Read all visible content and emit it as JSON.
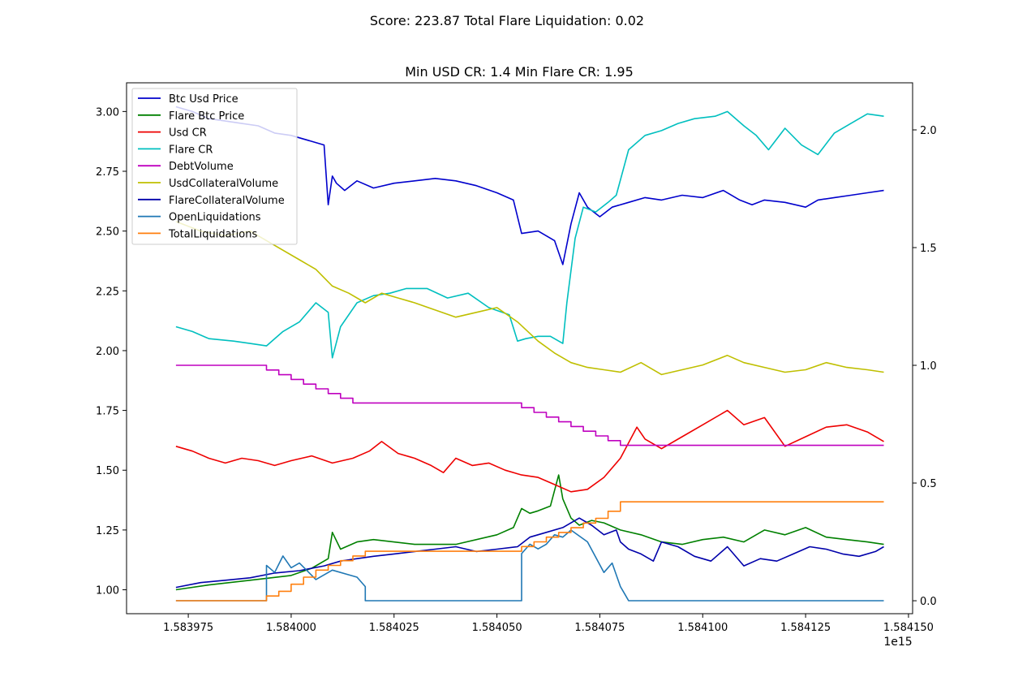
{
  "figure": {
    "suptitle": "Score: 223.87 Total Flare Liquidation: 0.02"
  },
  "chart_data": {
    "type": "line",
    "title": "Min USD CR: 1.4 Min Flare CR: 1.95",
    "xlabel": "",
    "ylabel_left": "",
    "ylabel_right": "",
    "x_offset_label": "1e15",
    "xlim": [
      1.58396,
      1.584151
    ],
    "ylim_left": [
      0.9,
      3.12
    ],
    "ylim_right": [
      -0.055,
      2.2
    ],
    "x_ticks": [
      1.583975,
      1.584,
      1.584025,
      1.58405,
      1.584075,
      1.5841,
      1.584125,
      1.58415
    ],
    "x_tick_labels": [
      "1.583975",
      "1.584000",
      "1.584025",
      "1.584050",
      "1.584075",
      "1.584100",
      "1.584125",
      "1.584150"
    ],
    "y_ticks_left": [
      1.0,
      1.25,
      1.5,
      1.75,
      2.0,
      2.25,
      2.5,
      2.75,
      3.0
    ],
    "y_tick_labels_left": [
      "1.00",
      "1.25",
      "1.50",
      "1.75",
      "2.00",
      "2.25",
      "2.50",
      "2.75",
      "3.00"
    ],
    "y_ticks_right": [
      0.0,
      0.5,
      1.0,
      1.5,
      2.0
    ],
    "y_tick_labels_right": [
      "0.0",
      "0.5",
      "1.0",
      "1.5",
      "2.0"
    ],
    "grid": false,
    "legend_position": "top-left",
    "series": [
      {
        "name": "Btc Usd Price",
        "color": "#0000cc",
        "axis": "left",
        "x": [
          1.583972,
          1.583976,
          1.58398,
          1.583984,
          1.583988,
          1.583992,
          1.583996,
          1.584,
          1.584004,
          1.584008,
          1.584009,
          1.58401,
          1.584011,
          1.584013,
          1.584016,
          1.58402,
          1.584025,
          1.58403,
          1.584035,
          1.58404,
          1.584045,
          1.58405,
          1.584054,
          1.584056,
          1.58406,
          1.584064,
          1.584066,
          1.584068,
          1.58407,
          1.584072,
          1.584075,
          1.584078,
          1.584082,
          1.584086,
          1.58409,
          1.584095,
          1.5841,
          1.584105,
          1.584109,
          1.584112,
          1.584115,
          1.58412,
          1.584125,
          1.584128,
          1.584132,
          1.584136,
          1.58414,
          1.584144
        ],
        "y": [
          3.02,
          3.0,
          2.97,
          2.96,
          2.95,
          2.94,
          2.91,
          2.9,
          2.88,
          2.86,
          2.61,
          2.73,
          2.7,
          2.67,
          2.71,
          2.68,
          2.7,
          2.71,
          2.72,
          2.71,
          2.69,
          2.66,
          2.63,
          2.49,
          2.5,
          2.46,
          2.36,
          2.53,
          2.66,
          2.6,
          2.56,
          2.6,
          2.62,
          2.64,
          2.63,
          2.65,
          2.64,
          2.67,
          2.63,
          2.61,
          2.63,
          2.62,
          2.6,
          2.63,
          2.64,
          2.65,
          2.66,
          2.67
        ]
      },
      {
        "name": "Flare Btc Price",
        "color": "#008000",
        "axis": "left",
        "x": [
          1.583972,
          1.58398,
          1.58399,
          1.584,
          1.584005,
          1.584009,
          1.58401,
          1.584012,
          1.584016,
          1.58402,
          1.58403,
          1.58404,
          1.58405,
          1.584054,
          1.584056,
          1.584058,
          1.58406,
          1.584063,
          1.584065,
          1.584066,
          1.584068,
          1.58407,
          1.584073,
          1.584076,
          1.58408,
          1.584085,
          1.58409,
          1.584095,
          1.5841,
          1.584105,
          1.58411,
          1.584115,
          1.58412,
          1.584125,
          1.58413,
          1.584135,
          1.58414,
          1.584144
        ],
        "y": [
          1.0,
          1.02,
          1.04,
          1.06,
          1.09,
          1.13,
          1.24,
          1.17,
          1.2,
          1.21,
          1.19,
          1.19,
          1.23,
          1.26,
          1.34,
          1.32,
          1.33,
          1.35,
          1.48,
          1.38,
          1.3,
          1.27,
          1.29,
          1.28,
          1.25,
          1.23,
          1.2,
          1.19,
          1.21,
          1.22,
          1.2,
          1.25,
          1.23,
          1.26,
          1.22,
          1.21,
          1.2,
          1.19
        ]
      },
      {
        "name": "Usd CR",
        "color": "#ee0000",
        "axis": "left",
        "x": [
          1.583972,
          1.583976,
          1.58398,
          1.583984,
          1.583988,
          1.583992,
          1.583996,
          1.584,
          1.584005,
          1.58401,
          1.584015,
          1.584019,
          1.584022,
          1.584026,
          1.58403,
          1.584034,
          1.584037,
          1.58404,
          1.584044,
          1.584048,
          1.584052,
          1.584056,
          1.58406,
          1.584064,
          1.584068,
          1.584072,
          1.584076,
          1.58408,
          1.584084,
          1.584086,
          1.58409,
          1.584095,
          1.5841,
          1.584106,
          1.58411,
          1.584115,
          1.58412,
          1.584125,
          1.58413,
          1.584135,
          1.58414,
          1.584144
        ],
        "y": [
          1.6,
          1.58,
          1.55,
          1.53,
          1.55,
          1.54,
          1.52,
          1.54,
          1.56,
          1.53,
          1.55,
          1.58,
          1.62,
          1.57,
          1.55,
          1.52,
          1.49,
          1.55,
          1.52,
          1.53,
          1.5,
          1.48,
          1.47,
          1.44,
          1.41,
          1.42,
          1.47,
          1.55,
          1.68,
          1.63,
          1.59,
          1.64,
          1.69,
          1.75,
          1.69,
          1.72,
          1.6,
          1.64,
          1.68,
          1.69,
          1.66,
          1.62
        ]
      },
      {
        "name": "Flare CR",
        "color": "#00bfbf",
        "axis": "left",
        "x": [
          1.583972,
          1.583976,
          1.58398,
          1.583986,
          1.58399,
          1.583994,
          1.583998,
          1.584002,
          1.584006,
          1.584009,
          1.58401,
          1.584012,
          1.584016,
          1.58402,
          1.584024,
          1.584028,
          1.584033,
          1.584038,
          1.584043,
          1.584048,
          1.584053,
          1.584055,
          1.584057,
          1.58406,
          1.584063,
          1.584066,
          1.584067,
          1.584069,
          1.584071,
          1.584074,
          1.584077,
          1.584079,
          1.584082,
          1.584086,
          1.58409,
          1.584094,
          1.584098,
          1.584103,
          1.584106,
          1.58411,
          1.584113,
          1.584116,
          1.58412,
          1.584124,
          1.584128,
          1.584132,
          1.584136,
          1.58414,
          1.584144
        ],
        "y": [
          2.1,
          2.08,
          2.05,
          2.04,
          2.03,
          2.02,
          2.08,
          2.12,
          2.2,
          2.16,
          1.97,
          2.1,
          2.2,
          2.23,
          2.24,
          2.26,
          2.26,
          2.22,
          2.24,
          2.18,
          2.15,
          2.04,
          2.05,
          2.06,
          2.06,
          2.03,
          2.2,
          2.47,
          2.6,
          2.58,
          2.62,
          2.65,
          2.84,
          2.9,
          2.92,
          2.95,
          2.97,
          2.98,
          3.0,
          2.94,
          2.9,
          2.84,
          2.93,
          2.86,
          2.82,
          2.91,
          2.95,
          2.99,
          2.98
        ]
      },
      {
        "name": "DebtVolume",
        "color": "#bf00bf",
        "axis": "right",
        "step": true,
        "x": [
          1.583972,
          1.583994,
          1.583997,
          1.584,
          1.584003,
          1.584006,
          1.584009,
          1.584012,
          1.584015,
          1.584056,
          1.584059,
          1.584062,
          1.584065,
          1.584068,
          1.584071,
          1.584074,
          1.584077,
          1.58408,
          1.584144
        ],
        "y": [
          1.0,
          0.98,
          0.96,
          0.94,
          0.92,
          0.9,
          0.88,
          0.86,
          0.84,
          0.82,
          0.8,
          0.78,
          0.76,
          0.74,
          0.72,
          0.7,
          0.68,
          0.66,
          0.66
        ]
      },
      {
        "name": "UsdCollateralVolume",
        "color": "#bfbf00",
        "axis": "left",
        "x": [
          1.583972,
          1.583978,
          1.583984,
          1.58399,
          1.583996,
          1.584002,
          1.584006,
          1.58401,
          1.584014,
          1.584018,
          1.584022,
          1.584026,
          1.58403,
          1.584035,
          1.58404,
          1.584045,
          1.58405,
          1.584055,
          1.58406,
          1.584064,
          1.584068,
          1.584072,
          1.584076,
          1.58408,
          1.584085,
          1.58409,
          1.584095,
          1.5841,
          1.584106,
          1.58411,
          1.584115,
          1.58412,
          1.584125,
          1.58413,
          1.584135,
          1.58414,
          1.584144
        ],
        "y": [
          2.54,
          2.5,
          2.48,
          2.5,
          2.44,
          2.38,
          2.34,
          2.27,
          2.24,
          2.2,
          2.24,
          2.22,
          2.2,
          2.17,
          2.14,
          2.16,
          2.18,
          2.12,
          2.04,
          1.99,
          1.95,
          1.93,
          1.92,
          1.91,
          1.95,
          1.9,
          1.92,
          1.94,
          1.98,
          1.95,
          1.93,
          1.91,
          1.92,
          1.95,
          1.93,
          1.92,
          1.91
        ]
      },
      {
        "name": "FlareCollateralVolume",
        "color": "#0000aa",
        "axis": "left",
        "x": [
          1.583972,
          1.583978,
          1.583984,
          1.58399,
          1.583996,
          1.584002,
          1.584008,
          1.584012,
          1.584016,
          1.58402,
          1.584025,
          1.58403,
          1.584035,
          1.58404,
          1.584045,
          1.58405,
          1.584055,
          1.584058,
          1.584062,
          1.584066,
          1.584068,
          1.58407,
          1.584073,
          1.584076,
          1.584079,
          1.58408,
          1.584082,
          1.584085,
          1.584088,
          1.58409,
          1.584094,
          1.584098,
          1.584102,
          1.584106,
          1.58411,
          1.584114,
          1.584118,
          1.584122,
          1.584126,
          1.58413,
          1.584134,
          1.584138,
          1.584142,
          1.584144
        ],
        "y": [
          1.01,
          1.03,
          1.04,
          1.05,
          1.07,
          1.08,
          1.1,
          1.12,
          1.13,
          1.14,
          1.15,
          1.16,
          1.17,
          1.18,
          1.16,
          1.17,
          1.18,
          1.22,
          1.24,
          1.26,
          1.28,
          1.3,
          1.27,
          1.23,
          1.25,
          1.2,
          1.17,
          1.15,
          1.12,
          1.2,
          1.18,
          1.14,
          1.12,
          1.18,
          1.1,
          1.13,
          1.12,
          1.15,
          1.18,
          1.17,
          1.15,
          1.14,
          1.16,
          1.18
        ]
      },
      {
        "name": "OpenLiquidations",
        "color": "#1f77b4",
        "axis": "right",
        "x": [
          1.583972,
          1.583994,
          1.583994,
          1.583996,
          1.583998,
          1.584,
          1.584002,
          1.584006,
          1.58401,
          1.584014,
          1.584016,
          1.584018,
          1.584018,
          1.584056,
          1.584056,
          1.584058,
          1.58406,
          1.584062,
          1.584064,
          1.584066,
          1.584068,
          1.584072,
          1.584076,
          1.584078,
          1.58408,
          1.584081,
          1.584082,
          1.584144
        ],
        "y": [
          0.0,
          0.0,
          0.15,
          0.12,
          0.19,
          0.14,
          0.16,
          0.09,
          0.13,
          0.11,
          0.1,
          0.06,
          0.0,
          0.0,
          0.2,
          0.24,
          0.22,
          0.24,
          0.28,
          0.27,
          0.3,
          0.25,
          0.12,
          0.16,
          0.06,
          0.03,
          0.0,
          0.0
        ]
      },
      {
        "name": "TotalLiquidations",
        "color": "#ff7f0e",
        "axis": "right",
        "step": true,
        "x": [
          1.583972,
          1.583994,
          1.583997,
          1.584,
          1.584003,
          1.584006,
          1.584009,
          1.584012,
          1.584015,
          1.584018,
          1.584056,
          1.584059,
          1.584062,
          1.584065,
          1.584068,
          1.584071,
          1.584074,
          1.584077,
          1.58408,
          1.584144
        ],
        "y": [
          0.0,
          0.02,
          0.04,
          0.07,
          0.1,
          0.13,
          0.15,
          0.17,
          0.19,
          0.21,
          0.23,
          0.25,
          0.27,
          0.29,
          0.31,
          0.33,
          0.35,
          0.38,
          0.42,
          0.42
        ]
      }
    ]
  }
}
